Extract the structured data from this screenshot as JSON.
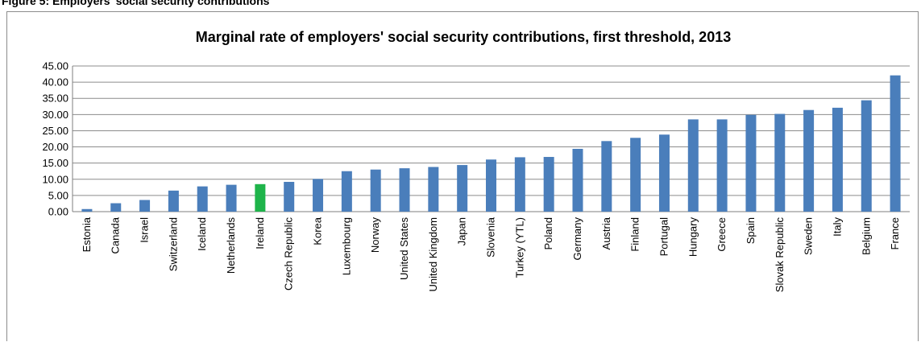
{
  "figure": {
    "caption": "Figure 5: Employers' social security contributions",
    "accent_color": "#4a7ebb",
    "highlight_color": "#1eb44a"
  },
  "chart_data": {
    "type": "bar",
    "title": "Marginal rate of employers' social security contributions, first threshold, 2013",
    "xlabel": "",
    "ylabel": "",
    "ylim": [
      0,
      45
    ],
    "yticks": [
      "0.00",
      "5.00",
      "10.00",
      "15.00",
      "20.00",
      "25.00",
      "30.00",
      "35.00",
      "40.00",
      "45.00"
    ],
    "grid": true,
    "legend": "none",
    "categories": [
      "Estonia",
      "Canada",
      "Israel",
      "Switzerland",
      "Iceland",
      "Netherlands",
      "Ireland",
      "Czech Republic",
      "Korea",
      "Luxembourg",
      "Norway",
      "United States",
      "United Kingdom",
      "Japan",
      "Slovenia",
      "Turkey (YTL)",
      "Poland",
      "Germany",
      "Austria",
      "Finland",
      "Portugal",
      "Hungary",
      "Greece",
      "Spain",
      "Slovak Republic",
      "Sweden",
      "Italy",
      "Belgium",
      "France"
    ],
    "values": [
      0.8,
      2.6,
      3.6,
      6.5,
      7.8,
      8.3,
      8.5,
      9.2,
      10.1,
      12.5,
      13.0,
      13.4,
      13.8,
      14.4,
      16.1,
      16.8,
      16.9,
      19.4,
      21.8,
      22.8,
      23.8,
      28.5,
      28.5,
      29.9,
      30.2,
      31.4,
      32.1,
      34.4,
      42.1
    ],
    "highlight": "Ireland"
  }
}
